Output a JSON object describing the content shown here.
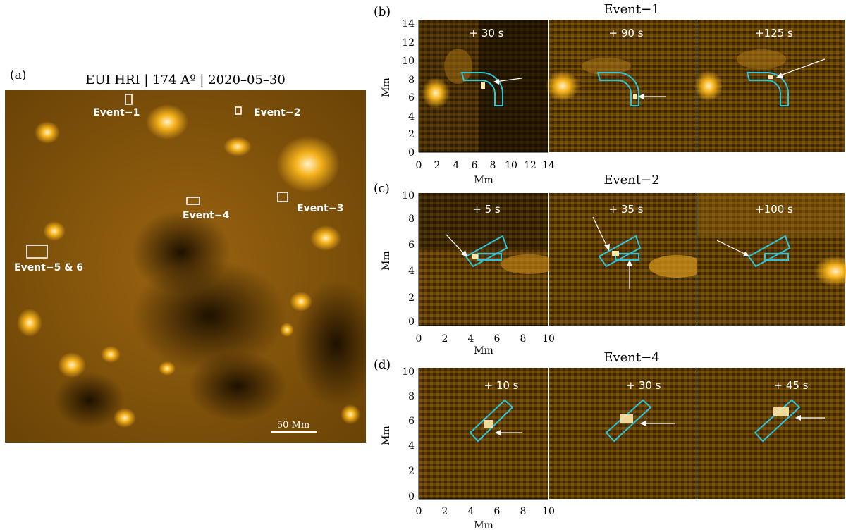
{
  "panel_a": {
    "label": "(a)",
    "title": "EUI HRI  |  174 Aº  |  2020–05–30",
    "events": [
      "Event−1",
      "Event−2",
      "Event−3",
      "Event−4",
      "Event−5 & 6"
    ],
    "scale_bar": "50 Mm"
  },
  "panel_b": {
    "label": "(b)",
    "title": "Event−1",
    "times": [
      "+ 30 s",
      "+ 90 s",
      "+125 s"
    ],
    "xticks": [
      "0",
      "2",
      "4",
      "6",
      "8",
      "10",
      "12",
      "14",
      "14"
    ],
    "yticks": [
      "0",
      "2",
      "4",
      "6",
      "8",
      "10",
      "12",
      "14"
    ],
    "xlabel": "Mm",
    "ylabel": "Mm"
  },
  "panel_c": {
    "label": "(c)",
    "title": "Event−2",
    "times": [
      "+  5 s",
      "+ 35 s",
      "+100 s"
    ],
    "xticks": [
      "0",
      "2",
      "4",
      "6",
      "8",
      "10",
      "10"
    ],
    "yticks": [
      "0",
      "2",
      "4",
      "6",
      "8",
      "10"
    ],
    "xlabel": "Mm",
    "ylabel": "Mm"
  },
  "panel_d": {
    "label": "(d)",
    "title": "Event−4",
    "times": [
      "+ 10 s",
      "+ 30 s",
      "+ 45 s"
    ],
    "xticks": [
      "0",
      "2",
      "4",
      "6",
      "8",
      "10",
      "10"
    ],
    "yticks": [
      "0",
      "2",
      "4",
      "6",
      "8",
      "10"
    ],
    "xlabel": "Mm",
    "ylabel": "Mm"
  },
  "colors": {
    "image_dark": "#2a1800",
    "image_bright": "#f5b21a",
    "box_cyan": "#2fc4d8"
  }
}
